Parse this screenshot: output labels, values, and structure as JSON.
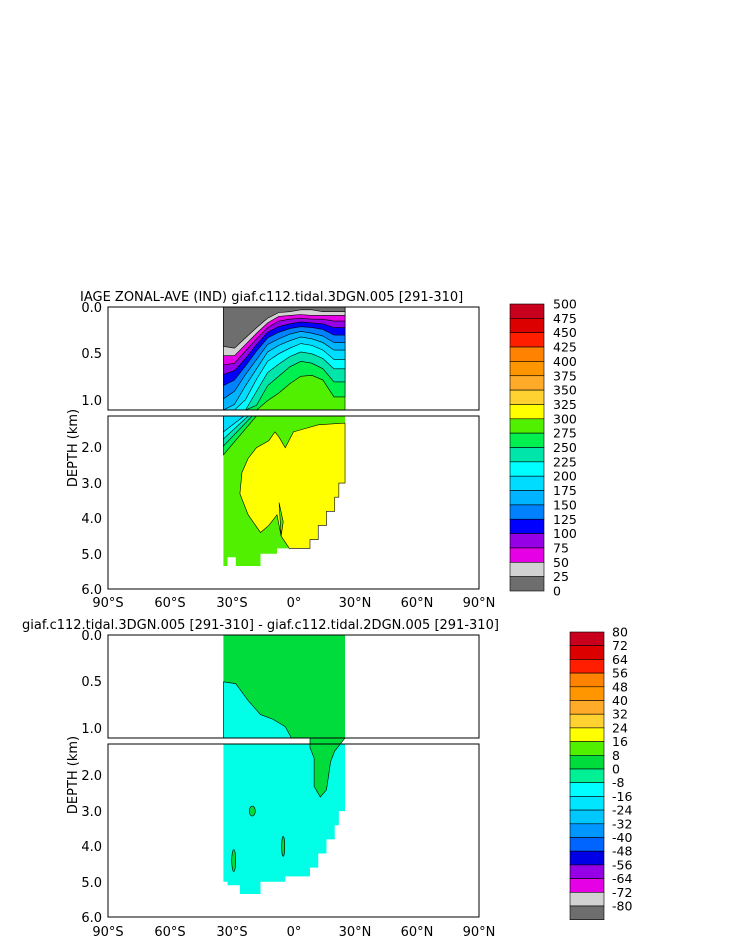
{
  "chart_data": [
    {
      "type": "heatmap",
      "title": "IAGE ZONAL-AVE (IND) giaf.c112.tidal.3DGN.005 [291-310]",
      "ylabel": "DEPTH (km)",
      "xticks": [
        "90°S",
        "60°S",
        "30°S",
        "0°",
        "30°N",
        "60°N",
        "90°N"
      ],
      "yticks_upper": [
        "0.0",
        "0.5",
        "1.0"
      ],
      "yticks_lower": [
        "2.0",
        "3.0",
        "4.0",
        "5.0",
        "6.0"
      ],
      "xlim": [
        -90,
        90
      ],
      "ylim_upper": [
        0,
        1.1
      ],
      "ylim_lower": [
        1.1,
        6.0
      ],
      "colorbar_labels": [
        "500",
        "475",
        "450",
        "425",
        "400",
        "375",
        "350",
        "325",
        "300",
        "275",
        "250",
        "225",
        "200",
        "175",
        "150",
        "125",
        "100",
        "75",
        "50",
        "25",
        "0"
      ],
      "colorbar_colors": [
        "#c8001e",
        "#dc0000",
        "#ff1e00",
        "#ff8200",
        "#ff9600",
        "#ffaa28",
        "#ffd232",
        "#ffff00",
        "#50f000",
        "#00f050",
        "#00e6aa",
        "#00ffff",
        "#00dcff",
        "#00b4ff",
        "#0082ff",
        "#0000ff",
        "#9600e6",
        "#e600e6",
        "#d2d2d2",
        "#6e6e6e"
      ],
      "upper_layers": [
        {
          "color": "#6e6e6e",
          "depth": [
            0.42,
            0.44,
            0.33,
            0.22,
            0.12,
            0.06,
            0.05,
            0.03,
            0.03,
            0.05,
            0.05,
            0.05
          ]
        },
        {
          "color": "#d2d2d2",
          "depth": [
            0.52,
            0.52,
            0.4,
            0.28,
            0.17,
            0.1,
            0.09,
            0.08,
            0.09,
            0.09,
            0.09,
            0.09
          ]
        },
        {
          "color": "#e600e6",
          "depth": [
            0.62,
            0.6,
            0.47,
            0.34,
            0.22,
            0.15,
            0.13,
            0.12,
            0.13,
            0.13,
            0.15,
            0.15
          ]
        },
        {
          "color": "#9600e6",
          "depth": [
            0.72,
            0.68,
            0.55,
            0.4,
            0.27,
            0.21,
            0.18,
            0.16,
            0.17,
            0.18,
            0.22,
            0.22
          ]
        },
        {
          "color": "#0000ff",
          "depth": [
            0.84,
            0.78,
            0.63,
            0.47,
            0.33,
            0.27,
            0.23,
            0.21,
            0.22,
            0.24,
            0.3,
            0.3
          ]
        },
        {
          "color": "#0082ff",
          "depth": [
            0.98,
            0.9,
            0.72,
            0.56,
            0.4,
            0.34,
            0.29,
            0.26,
            0.28,
            0.31,
            0.38,
            0.38
          ]
        },
        {
          "color": "#00b4ff",
          "depth": [
            1.1,
            1.04,
            0.84,
            0.66,
            0.48,
            0.41,
            0.36,
            0.32,
            0.34,
            0.38,
            0.46,
            0.46
          ]
        },
        {
          "color": "#00dcff",
          "depth": [
            1.1,
            1.1,
            0.99,
            0.77,
            0.58,
            0.5,
            0.44,
            0.39,
            0.41,
            0.46,
            0.56,
            0.56
          ]
        },
        {
          "color": "#00ffff",
          "depth": [
            1.1,
            1.1,
            1.1,
            0.9,
            0.7,
            0.61,
            0.53,
            0.48,
            0.5,
            0.55,
            0.66,
            0.66
          ]
        },
        {
          "color": "#00e6aa",
          "depth": [
            1.1,
            1.1,
            1.1,
            1.05,
            0.84,
            0.74,
            0.64,
            0.58,
            0.6,
            0.66,
            0.8,
            0.8
          ]
        },
        {
          "color": "#00f050",
          "depth": [
            1.1,
            1.1,
            1.1,
            1.1,
            1.0,
            0.92,
            0.82,
            0.74,
            0.73,
            0.78,
            0.96,
            0.96
          ]
        },
        {
          "color": "#50f000",
          "depth": [
            1.1,
            1.1,
            1.1,
            1.1,
            1.1,
            1.1,
            1.1,
            1.1,
            1.1,
            1.1,
            1.1,
            1.1
          ]
        }
      ],
      "lower_fill": "#50f000",
      "lower_patch_color": "#ffff00"
    },
    {
      "type": "heatmap",
      "title": "giaf.c112.tidal.3DGN.005 [291-310] - giaf.c112.tidal.2DGN.005 [291-310]",
      "ylabel": "DEPTH (km)",
      "xticks": [
        "90°S",
        "60°S",
        "30°S",
        "0°",
        "30°N",
        "60°N",
        "90°N"
      ],
      "yticks_upper": [
        "0.0",
        "0.5",
        "1.0"
      ],
      "yticks_lower": [
        "2.0",
        "3.0",
        "4.0",
        "5.0",
        "6.0"
      ],
      "xlim": [
        -90,
        90
      ],
      "ylim_upper": [
        0,
        1.1
      ],
      "ylim_lower": [
        1.1,
        6.0
      ],
      "colorbar_labels": [
        "80",
        "72",
        "64",
        "56",
        "48",
        "40",
        "32",
        "24",
        "16",
        "8",
        "0",
        "-8",
        "-16",
        "-24",
        "-32",
        "-40",
        "-48",
        "-56",
        "-64",
        "-72",
        "-80"
      ],
      "colorbar_colors": [
        "#c8001e",
        "#dc0000",
        "#ff1e00",
        "#ff8200",
        "#ff9600",
        "#ffaa28",
        "#ffd232",
        "#ffff00",
        "#50f000",
        "#00dc3c",
        "#00f096",
        "#00ffff",
        "#00e6ff",
        "#00c8ff",
        "#0096ff",
        "#0064ff",
        "#0000e6",
        "#9600e6",
        "#e600e6",
        "#d2d2d2",
        "#6e6e6e"
      ],
      "upper_fill": "#00dc3c",
      "lower_fill": "#00ffe6",
      "positive_color": "#00dc3c",
      "negative_color": "#00ffe6"
    }
  ]
}
